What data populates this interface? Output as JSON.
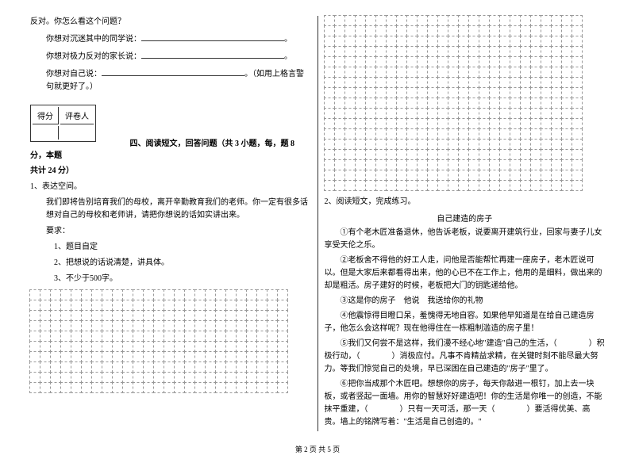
{
  "left": {
    "q_intro": "反对。你怎么看这个问题？",
    "prompt1_label": "你想对沉迷其中的同学说：",
    "prompt2_label": "你想对极力反对的家长说：",
    "prompt3_label": "你想对自己说：",
    "prompt3_suffix": "。（如用上格言警句就更好了。）",
    "score_col1": "得分",
    "score_col2": "评卷人",
    "section4_title": "四、阅读短文，回答问题（共 3 小题，每，题 8 分，本题",
    "section4_cont": "共计 24 分）",
    "q1_num": "1、表达空间。",
    "q1_body": "我们即将告别培育我们的母校，离开辛勤教育我们的老师。你一定有很多话想对自己的母校和老师讲，请把你想说的话如实讲出来。",
    "req_label": "要求：",
    "req1": "1、题目自定",
    "req2": "2、把想说的话说清楚，讲具体。",
    "req3": "3、不少于500字。",
    "grid": {
      "rows": 10,
      "cols": 25
    }
  },
  "right": {
    "grid_top": {
      "rows": 17,
      "cols": 25
    },
    "q2_num": "2、阅读短文，完成练习。",
    "title": "自己建造的房子",
    "p1": "①有个老木匠准备退休，他告诉老板，说要离开建筑行业，回家与妻子儿女享受天伦之乐。",
    "p2": "②老板舍不得他的好工人走，问他是否能帮忙再建一座房子，老木匠说可以。但是大家后来都看得出来，他的心已不在工作上，他用的是细料，做出来的却是粗活。房子建好的时候，老板把大门的钥匙递给他。",
    "p3": "③这是你的房子　他说　我送给你的礼物",
    "p4": "④他震惊得目瞪口呆，羞愧得无地自容。如果他早知道是在给自己建造房子，他怎么会这样呢？现在他得住在一栋粗制滥造的房子里！",
    "p5_a": "⑤我们又何尝不是这样，我们漫不经心地\"建造\"自己的生活，（",
    "p5_b": "）积极行动，（",
    "p5_c": "）消极应付。凡事不肯精益求精，在关键时刻不能尽最大努力。等我们惊觉自己的处境，早已深困在自己建造的\"房子\"里了。",
    "p6_a": "⑥把你当成那个木匠吧。想想你的房子，每天你敲进一根钉，加上去一块板，或者竖起一面墙。用你的智慧好好建造吧！你的生活是你唯一的创造，不能抹平重建，（",
    "p6_b": "）只有一天可活，那一天（",
    "p6_c": "）要活得优美、高贵。墙上的铭牌写着：\"生活是自己创造的。\""
  },
  "footer": "第 2 页 共 5 页"
}
